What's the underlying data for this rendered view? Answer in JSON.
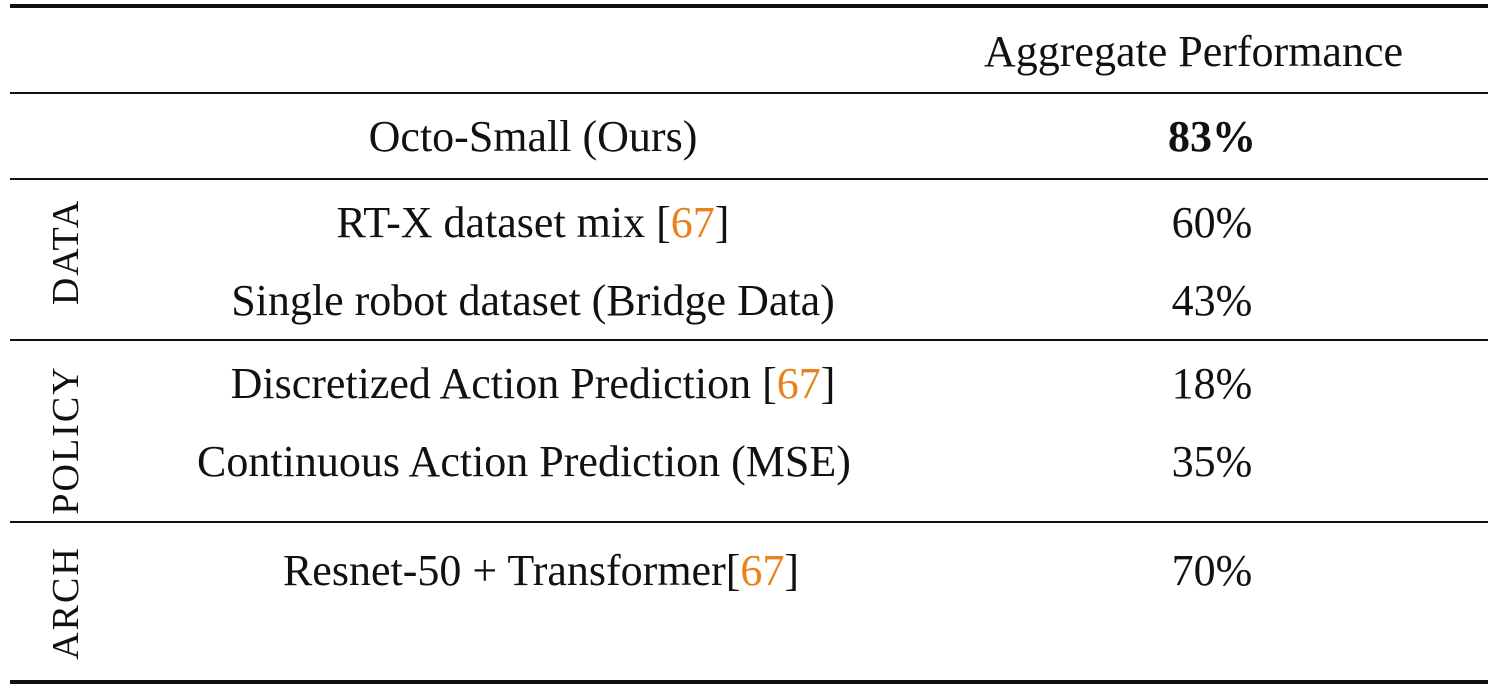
{
  "header": {
    "method": "",
    "metric": "Aggregate Performance"
  },
  "rows": {
    "ours": {
      "method": "Octo-Small (Ours)",
      "value": "83%"
    },
    "data": {
      "group": "DATA",
      "items": [
        {
          "pre": "RT-X dataset mix [",
          "cite": "67",
          "post": "]",
          "value": "60%"
        },
        {
          "pre": "Single robot dataset (Bridge Data)",
          "cite": "",
          "post": "",
          "value": "43%"
        }
      ]
    },
    "policy": {
      "group": "POLICY",
      "items": [
        {
          "pre": "Discretized Action Prediction [",
          "cite": "67",
          "post": "]",
          "value": "18%"
        },
        {
          "pre": "Continuous Action Prediction (MSE)",
          "cite": "",
          "post": "",
          "value": "35%"
        }
      ]
    },
    "arch": {
      "group": "ARCH",
      "items": [
        {
          "pre": "Resnet-50 + Transformer[",
          "cite": "67",
          "post": "]",
          "value": "70%"
        }
      ]
    }
  },
  "colors": {
    "citation": "#e8821e",
    "text": "#111111"
  }
}
